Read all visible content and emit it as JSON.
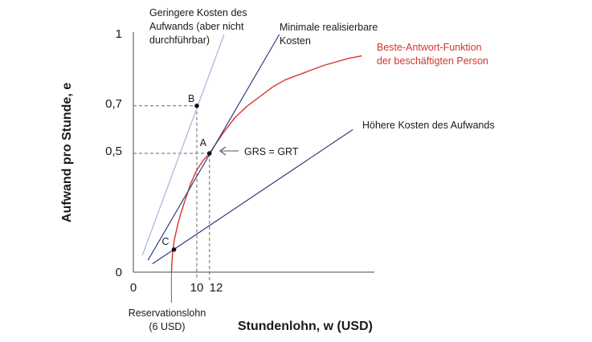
{
  "chart_data": {
    "type": "line",
    "xlabel": "Stundenlohn, w (USD)",
    "ylabel": "Aufwand pro Stunde, e",
    "xlim": [
      0,
      37
    ],
    "ylim": [
      0,
      1
    ],
    "x_ticks": [
      "0",
      "10",
      "12"
    ],
    "y_ticks": [
      "0",
      "0,5",
      "0,7",
      "1"
    ],
    "series": [
      {
        "name": "Beste-Antwort-Funktion der beschäftigten Person",
        "color": "#d6342a",
        "x": [
          6,
          6.2,
          6.5,
          7,
          7.5,
          8,
          9,
          10,
          11,
          12,
          14,
          16,
          18,
          20,
          22,
          24,
          26,
          28,
          30,
          32,
          34,
          36
        ],
        "y": [
          0,
          0.09,
          0.14,
          0.2,
          0.25,
          0.29,
          0.37,
          0.43,
          0.47,
          0.5,
          0.58,
          0.65,
          0.7,
          0.74,
          0.78,
          0.81,
          0.83,
          0.85,
          0.87,
          0.885,
          0.9,
          0.91
        ]
      },
      {
        "name": "Geringere Kosten des Aufwands (aber nicht durchführbar)",
        "color": "#a9b2d8",
        "x": [
          1.4,
          14.3
        ],
        "y": [
          0.07,
          1.0
        ]
      },
      {
        "name": "Minimale realisierbare Kosten",
        "color": "#2f3f80",
        "x": [
          2.3,
          23.0
        ],
        "y": [
          0.05,
          1.0
        ]
      },
      {
        "name": "Höhere Kosten des Aufwands",
        "color": "#2f3f80",
        "x": [
          3.0,
          34.6
        ],
        "y": [
          0.035,
          0.6
        ]
      }
    ],
    "points": [
      {
        "label": "A",
        "x": 12,
        "y": 0.5
      },
      {
        "label": "B",
        "x": 10,
        "y": 0.7
      },
      {
        "label": "C",
        "x": 6.4,
        "y": 0.095
      }
    ],
    "annotations": {
      "grs": "GRS = GRT",
      "reservation_line1": "Reservationslohn",
      "reservation_line2": "(6 USD)",
      "low_cost_line1": "Geringere Kosten des",
      "low_cost_line2": "Aufwands (aber nicht",
      "low_cost_line3": "durchführbar)",
      "min_cost_line1": "Minimale realisierbare",
      "min_cost_line2": "Kosten",
      "best_response_line1": "Beste-Antwort-Funktion",
      "best_response_line2": "der beschäftigten Person",
      "high_cost": "Höhere Kosten des Aufwands"
    },
    "grid": false,
    "legend": "none"
  }
}
